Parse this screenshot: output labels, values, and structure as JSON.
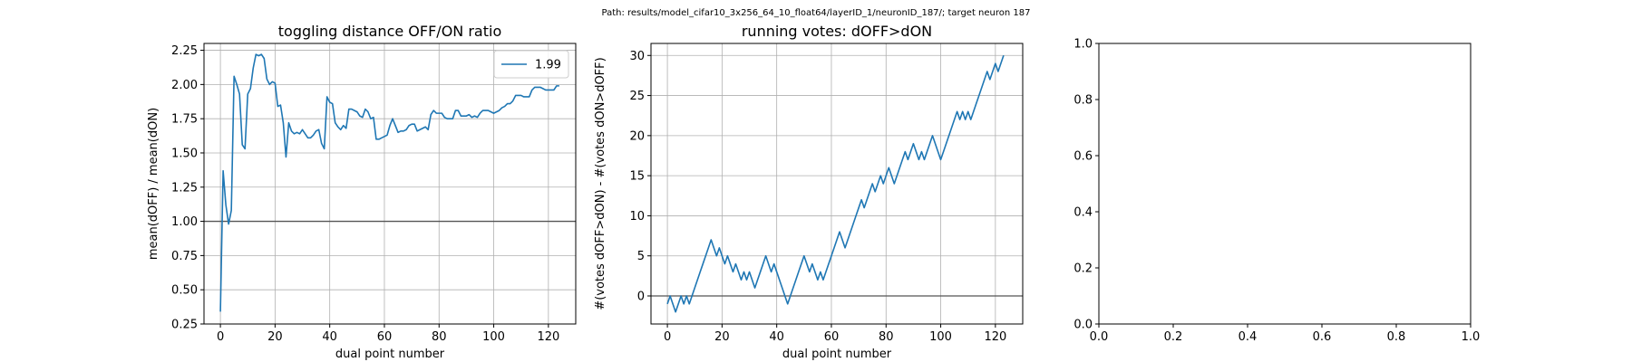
{
  "suptitle": "Path: results/model_cifar10_3x256_64_10_float64/layerID_1/neuronID_187/; target neuron 187",
  "chart_data": [
    {
      "type": "line",
      "title": "toggling distance OFF/ON ratio",
      "xlabel": "dual point number",
      "ylabel": "mean(dOFF) / mean(dON)",
      "xlim": [
        -6,
        130
      ],
      "ylim": [
        0.25,
        2.3
      ],
      "xticks": [
        0,
        20,
        40,
        60,
        80,
        100,
        120
      ],
      "yticks": [
        0.25,
        0.5,
        0.75,
        1.0,
        1.25,
        1.5,
        1.75,
        2.0,
        2.25
      ],
      "ytick_labels": [
        "0.25",
        "0.50",
        "0.75",
        "1.00",
        "1.25",
        "1.50",
        "1.75",
        "2.00",
        "2.25"
      ],
      "grid": true,
      "hline": 1.0,
      "legend": {
        "position": "top-right",
        "label": "1.99"
      },
      "series": [
        {
          "name": "1.99",
          "color": "#1f77b4",
          "x_start": 0,
          "values": [
            0.34,
            1.37,
            1.12,
            0.98,
            1.08,
            2.06,
            2.0,
            1.93,
            1.56,
            1.53,
            1.93,
            1.97,
            2.12,
            2.22,
            2.21,
            2.22,
            2.19,
            2.04,
            2.0,
            2.02,
            2.01,
            1.84,
            1.85,
            1.72,
            1.47,
            1.72,
            1.66,
            1.64,
            1.65,
            1.64,
            1.67,
            1.64,
            1.61,
            1.61,
            1.63,
            1.66,
            1.67,
            1.57,
            1.53,
            1.91,
            1.87,
            1.86,
            1.72,
            1.69,
            1.67,
            1.7,
            1.68,
            1.82,
            1.82,
            1.81,
            1.8,
            1.77,
            1.76,
            1.82,
            1.8,
            1.75,
            1.76,
            1.6,
            1.6,
            1.61,
            1.62,
            1.63,
            1.7,
            1.75,
            1.7,
            1.65,
            1.66,
            1.66,
            1.67,
            1.7,
            1.71,
            1.71,
            1.66,
            1.67,
            1.68,
            1.69,
            1.67,
            1.78,
            1.81,
            1.79,
            1.79,
            1.79,
            1.76,
            1.75,
            1.75,
            1.75,
            1.81,
            1.81,
            1.77,
            1.77,
            1.77,
            1.78,
            1.76,
            1.77,
            1.76,
            1.79,
            1.81,
            1.81,
            1.81,
            1.8,
            1.79,
            1.8,
            1.81,
            1.83,
            1.84,
            1.86,
            1.86,
            1.88,
            1.92,
            1.92,
            1.92,
            1.91,
            1.91,
            1.91,
            1.96,
            1.98,
            1.98,
            1.98,
            1.97,
            1.96,
            1.96,
            1.96,
            1.96,
            1.99,
            1.99
          ]
        }
      ]
    },
    {
      "type": "line",
      "title": "running votes: dOFF>dON",
      "xlabel": "dual point number",
      "ylabel": "#(votes dOFF>dON) - #(votes dON>dOFF)",
      "xlim": [
        -6,
        130
      ],
      "ylim": [
        -3.5,
        31.5
      ],
      "xticks": [
        0,
        20,
        40,
        60,
        80,
        100,
        120
      ],
      "yticks": [
        0,
        5,
        10,
        15,
        20,
        25,
        30
      ],
      "ytick_labels": [
        "0",
        "5",
        "10",
        "15",
        "20",
        "25",
        "30"
      ],
      "grid": true,
      "hline": 0,
      "series": [
        {
          "name": "",
          "color": "#1f77b4",
          "x_start": 0,
          "values": [
            -1,
            0,
            -1,
            -2,
            -1,
            0,
            -1,
            0,
            -1,
            0,
            1,
            2,
            3,
            4,
            5,
            6,
            7,
            6,
            5,
            6,
            5,
            4,
            5,
            4,
            3,
            4,
            3,
            2,
            3,
            2,
            3,
            2,
            1,
            2,
            3,
            4,
            5,
            4,
            3,
            4,
            3,
            2,
            1,
            0,
            -1,
            0,
            1,
            2,
            3,
            4,
            5,
            4,
            3,
            4,
            3,
            2,
            3,
            2,
            3,
            4,
            5,
            6,
            7,
            8,
            7,
            6,
            7,
            8,
            9,
            10,
            11,
            12,
            11,
            12,
            13,
            14,
            13,
            14,
            15,
            14,
            15,
            16,
            15,
            14,
            15,
            16,
            17,
            18,
            17,
            18,
            19,
            18,
            17,
            18,
            17,
            18,
            19,
            20,
            19,
            18,
            17,
            18,
            19,
            20,
            21,
            22,
            23,
            22,
            23,
            22,
            23,
            22,
            23,
            24,
            25,
            26,
            27,
            28,
            27,
            28,
            29,
            28,
            29,
            30
          ]
        }
      ]
    },
    {
      "type": "line",
      "title": "",
      "xlabel": "",
      "ylabel": "",
      "xlim": [
        0,
        1
      ],
      "ylim": [
        0,
        1
      ],
      "xticks": [
        0,
        0.2,
        0.4,
        0.6,
        0.8,
        1.0
      ],
      "xtick_labels": [
        "0.0",
        "0.2",
        "0.4",
        "0.6",
        "0.8",
        "1.0"
      ],
      "yticks": [
        0,
        0.2,
        0.4,
        0.6,
        0.8,
        1.0
      ],
      "ytick_labels": [
        "0.0",
        "0.2",
        "0.4",
        "0.6",
        "0.8",
        "1.0"
      ],
      "grid": false,
      "series": []
    }
  ]
}
